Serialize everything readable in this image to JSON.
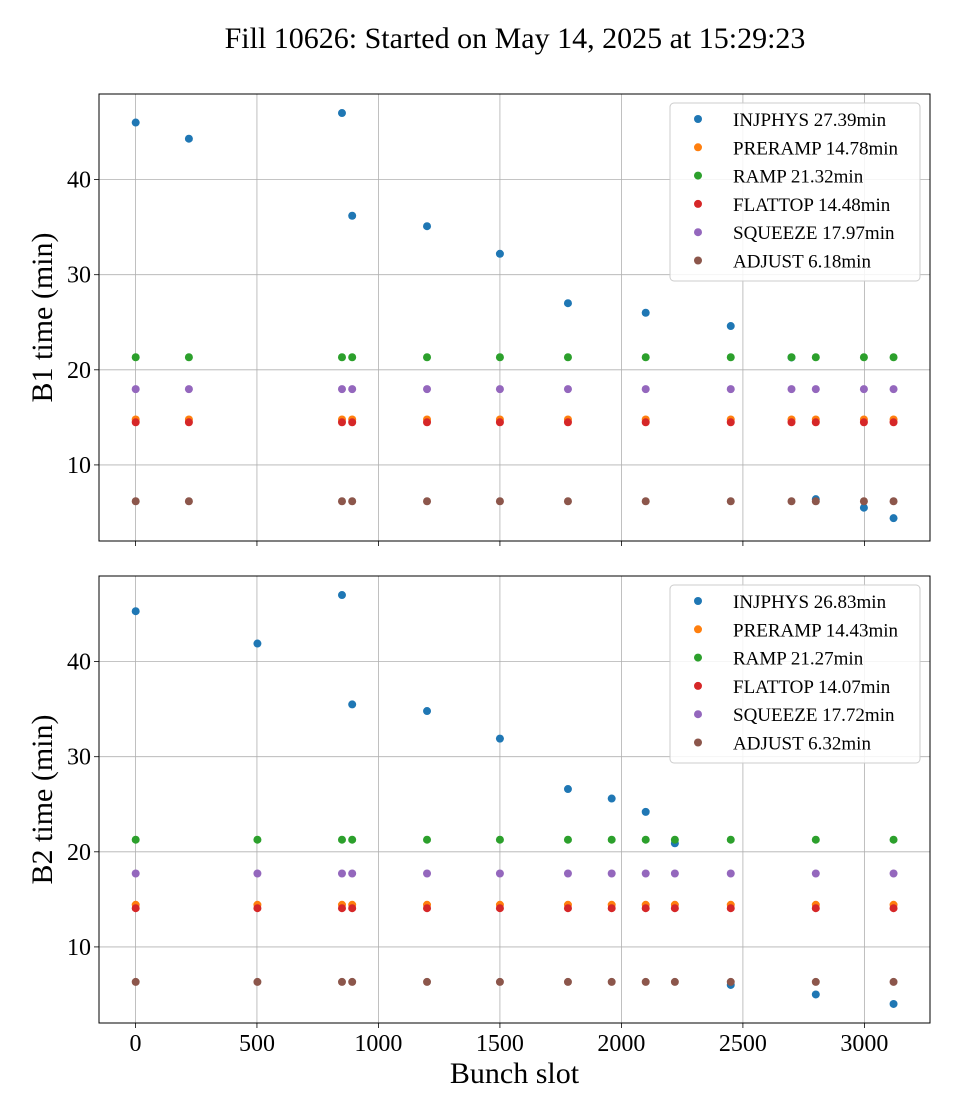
{
  "title": "Fill 10626: Started on May 14, 2025 at 15:29:23",
  "chart_data": [
    {
      "type": "scatter",
      "ylabel": "B1 time (min)",
      "xlabel": "",
      "xlim": [
        -150,
        3270
      ],
      "ylim": [
        2,
        49
      ],
      "xticks": [
        0,
        500,
        1000,
        1500,
        2000,
        2500,
        3000
      ],
      "yticks": [
        10,
        20,
        30,
        40
      ],
      "grid": true,
      "legend_position": "top-right",
      "series": [
        {
          "name": "INJPHYS 27.39min",
          "color": "#1f77b4",
          "x": [
            1,
            220,
            850,
            892,
            1200,
            1500,
            1780,
            2100,
            2450,
            2700,
            2800,
            2998,
            3120
          ],
          "y": [
            46.0,
            44.3,
            47.0,
            36.2,
            35.1,
            32.2,
            27.0,
            26.0,
            24.6,
            21.3,
            6.4,
            5.5,
            4.4
          ]
        },
        {
          "name": "PRERAMP 14.78min",
          "color": "#ff7f0e",
          "x": [
            1,
            220,
            850,
            892,
            1200,
            1500,
            1780,
            2100,
            2450,
            2700,
            2800,
            2998,
            3120
          ],
          "y": [
            14.78,
            14.78,
            14.78,
            14.78,
            14.78,
            14.78,
            14.78,
            14.78,
            14.78,
            14.78,
            14.78,
            14.78,
            14.78
          ]
        },
        {
          "name": "RAMP 21.32min",
          "color": "#2ca02c",
          "x": [
            1,
            220,
            850,
            892,
            1200,
            1500,
            1780,
            2100,
            2450,
            2700,
            2800,
            2998,
            3120
          ],
          "y": [
            21.32,
            21.32,
            21.32,
            21.32,
            21.32,
            21.32,
            21.32,
            21.32,
            21.32,
            21.32,
            21.32,
            21.32,
            21.32
          ]
        },
        {
          "name": "FLATTOP 14.48min",
          "color": "#d62728",
          "x": [
            1,
            220,
            850,
            892,
            1200,
            1500,
            1780,
            2100,
            2450,
            2700,
            2800,
            2998,
            3120
          ],
          "y": [
            14.48,
            14.48,
            14.48,
            14.48,
            14.48,
            14.48,
            14.48,
            14.48,
            14.48,
            14.48,
            14.48,
            14.48,
            14.48
          ]
        },
        {
          "name": "SQUEEZE 17.97min",
          "color": "#9467bd",
          "x": [
            1,
            220,
            850,
            892,
            1200,
            1500,
            1780,
            2100,
            2450,
            2700,
            2800,
            2998,
            3120
          ],
          "y": [
            17.97,
            17.97,
            17.97,
            17.97,
            17.97,
            17.97,
            17.97,
            17.97,
            17.97,
            17.97,
            17.97,
            17.97,
            17.97
          ]
        },
        {
          "name": "ADJUST 6.18min",
          "color": "#8c564b",
          "x": [
            1,
            220,
            850,
            892,
            1200,
            1500,
            1780,
            2100,
            2450,
            2700,
            2800,
            2998,
            3120
          ],
          "y": [
            6.18,
            6.18,
            6.18,
            6.18,
            6.18,
            6.18,
            6.18,
            6.18,
            6.18,
            6.18,
            6.18,
            6.18,
            6.18
          ]
        }
      ]
    },
    {
      "type": "scatter",
      "ylabel": "B2 time (min)",
      "xlabel": "Bunch slot",
      "xlim": [
        -150,
        3270
      ],
      "ylim": [
        2,
        49
      ],
      "xticks": [
        0,
        500,
        1000,
        1500,
        2000,
        2500,
        3000
      ],
      "yticks": [
        10,
        20,
        30,
        40
      ],
      "grid": true,
      "legend_position": "top-right",
      "series": [
        {
          "name": "INJPHYS 26.83min",
          "color": "#1f77b4",
          "x": [
            1,
            502,
            850,
            892,
            1200,
            1500,
            1780,
            1960,
            2100,
            2220,
            2450,
            2800,
            3120
          ],
          "y": [
            45.3,
            41.9,
            47.0,
            35.5,
            34.8,
            31.9,
            26.6,
            25.6,
            24.2,
            20.9,
            6.0,
            5.0,
            4.0
          ]
        },
        {
          "name": "PRERAMP 14.43min",
          "color": "#ff7f0e",
          "x": [
            1,
            502,
            850,
            892,
            1200,
            1500,
            1780,
            1960,
            2100,
            2220,
            2450,
            2800,
            3120
          ],
          "y": [
            14.43,
            14.43,
            14.43,
            14.43,
            14.43,
            14.43,
            14.43,
            14.43,
            14.43,
            14.43,
            14.43,
            14.43,
            14.43
          ]
        },
        {
          "name": "RAMP 21.27min",
          "color": "#2ca02c",
          "x": [
            1,
            502,
            850,
            892,
            1200,
            1500,
            1780,
            1960,
            2100,
            2220,
            2450,
            2800,
            3120
          ],
          "y": [
            21.27,
            21.27,
            21.27,
            21.27,
            21.27,
            21.27,
            21.27,
            21.27,
            21.27,
            21.27,
            21.27,
            21.27,
            21.27
          ]
        },
        {
          "name": "FLATTOP 14.07min",
          "color": "#d62728",
          "x": [
            1,
            502,
            850,
            892,
            1200,
            1500,
            1780,
            1960,
            2100,
            2220,
            2450,
            2800,
            3120
          ],
          "y": [
            14.07,
            14.07,
            14.07,
            14.07,
            14.07,
            14.07,
            14.07,
            14.07,
            14.07,
            14.07,
            14.07,
            14.07,
            14.07
          ]
        },
        {
          "name": "SQUEEZE 17.72min",
          "color": "#9467bd",
          "x": [
            1,
            502,
            850,
            892,
            1200,
            1500,
            1780,
            1960,
            2100,
            2220,
            2450,
            2800,
            3120
          ],
          "y": [
            17.72,
            17.72,
            17.72,
            17.72,
            17.72,
            17.72,
            17.72,
            17.72,
            17.72,
            17.72,
            17.72,
            17.72,
            17.72
          ]
        },
        {
          "name": "ADJUST 6.32min",
          "color": "#8c564b",
          "x": [
            1,
            502,
            850,
            892,
            1200,
            1500,
            1780,
            1960,
            2100,
            2220,
            2450,
            2800,
            3120
          ],
          "y": [
            6.32,
            6.32,
            6.32,
            6.32,
            6.32,
            6.32,
            6.32,
            6.32,
            6.32,
            6.32,
            6.32,
            6.32,
            6.32
          ]
        }
      ]
    }
  ]
}
